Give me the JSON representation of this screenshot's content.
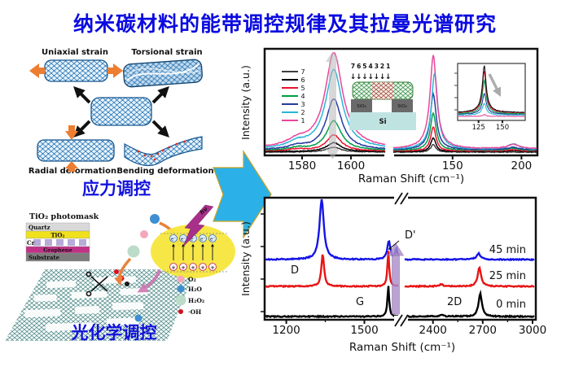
{
  "title": "纳米碳材料的能带调控规律及其拉曼光谱研究",
  "strain": {
    "uniaxial": "Uniaxial strain",
    "torsional": "Torsional strain",
    "radial": "Radial deformation",
    "bending": "Bending deformation",
    "caption": "应力调控",
    "arrow_color": "#ed7d31"
  },
  "photochem": {
    "mask_title": "TiO₂ photomask",
    "layers": [
      {
        "name": "Quartz",
        "color": "#d9d9d9"
      },
      {
        "name": "TiO₂",
        "color": "#f0e11c"
      },
      {
        "name": "Cr",
        "color": "#b7abd8"
      },
      {
        "name": "Graphene",
        "color": "#c03287"
      },
      {
        "name": "Substrate",
        "color": "#7d7d7d"
      }
    ],
    "legend": [
      {
        "label": "O₂",
        "color": "#f4a7bb"
      },
      {
        "label": "H₂O",
        "color": "#3e8ed0"
      },
      {
        "label": "H₂O₂",
        "color": "#bcdcca"
      },
      {
        "label": "·OH",
        "color": "#d01020"
      }
    ],
    "excitation": "hν",
    "electron": "e⁻",
    "hole": "+",
    "caption": "光化学调控"
  },
  "flow_arrow_color": "#2bb1e8",
  "chart_data": [
    {
      "type": "line",
      "xlabel": "Raman Shift (cm⁻¹)",
      "ylabel": "Intensity (a.u.)",
      "panels": [
        {
          "x_range": [
            1565,
            1614
          ],
          "ticks": [
            1580,
            1600
          ]
        },
        {
          "x_range": [
            107,
            211
          ],
          "ticks": [
            150,
            200
          ]
        }
      ],
      "series": [
        {
          "name": "7",
          "color": "#3f3f3f",
          "baseline": 0.0,
          "peaks": [
            [
              1593,
              3.5,
              0.055
            ],
            [
              136,
              2.2,
              0.085
            ]
          ]
        },
        {
          "name": "6",
          "color": "#000000",
          "baseline": 0.006,
          "peaks": [
            [
              1593,
              3.5,
              0.1
            ],
            [
              136,
              2.2,
              0.155
            ],
            [
              194,
              5,
              0.01
            ]
          ]
        },
        {
          "name": "5",
          "color": "#e8112d",
          "baseline": 0.012,
          "peaks": [
            [
              1593,
              3.6,
              0.18
            ],
            [
              1578,
              4,
              0.02
            ],
            [
              136,
              2.3,
              0.27
            ],
            [
              194,
              5,
              0.015
            ]
          ]
        },
        {
          "name": "4",
          "color": "#009e49",
          "baseline": 0.018,
          "peaks": [
            [
              1593,
              3.7,
              0.33
            ],
            [
              1578,
              4,
              0.03
            ],
            [
              136,
              2.4,
              0.4
            ],
            [
              136,
              7,
              0.02
            ],
            [
              194,
              5,
              0.025
            ]
          ]
        },
        {
          "name": "3",
          "color": "#283a9e",
          "baseline": 0.024,
          "peaks": [
            [
              1593,
              3.8,
              0.57
            ],
            [
              1578,
              4,
              0.04
            ],
            [
              136,
              2.5,
              0.58
            ],
            [
              136,
              7,
              0.05
            ],
            [
              194,
              5,
              0.03
            ]
          ]
        },
        {
          "name": "2",
          "color": "#2cb5d6",
          "baseline": 0.03,
          "peaks": [
            [
              1593,
              4.0,
              0.84
            ],
            [
              1593,
              9,
              0.05
            ],
            [
              1578,
              4.5,
              0.06
            ],
            [
              137,
              2.6,
              0.8
            ],
            [
              136,
              7,
              0.06
            ],
            [
              194,
              5,
              0.06
            ]
          ]
        },
        {
          "name": "1",
          "color": "#e8479b",
          "baseline": 0.036,
          "peaks": [
            [
              1593,
              4.2,
              1.0
            ],
            [
              1593,
              9,
              0.07
            ],
            [
              1578,
              5,
              0.07
            ],
            [
              136,
              2.7,
              0.95
            ],
            [
              136,
              7,
              0.1
            ],
            [
              194,
              5,
              0.05
            ]
          ]
        }
      ],
      "inset": {
        "x_range": [
          104,
          173
        ],
        "ticks": [
          125,
          150
        ],
        "series": [
          {
            "name": "1",
            "color": "#e8479b",
            "baseline": 0.0,
            "peaks": [
              [
                131,
                2.2,
                0.04
              ]
            ]
          },
          {
            "name": "2",
            "color": "#2cb5d6",
            "baseline": 0.03,
            "peaks": [
              [
                131,
                2.2,
                0.25
              ],
              [
                131,
                7,
                0.03
              ]
            ]
          },
          {
            "name": "3",
            "color": "#283a9e",
            "baseline": 0.05,
            "peaks": [
              [
                131,
                2.2,
                0.45
              ],
              [
                131,
                7,
                0.05
              ]
            ]
          },
          {
            "name": "4",
            "color": "#009e49",
            "baseline": 0.06,
            "peaks": [
              [
                131,
                2.2,
                0.72
              ],
              [
                131,
                7,
                0.08
              ]
            ]
          },
          {
            "name": "5",
            "color": "#e8112d",
            "baseline": 0.08,
            "peaks": [
              [
                131,
                2.2,
                0.9
              ],
              [
                131,
                7,
                0.1
              ]
            ]
          },
          {
            "name": "6",
            "color": "#111111",
            "baseline": 0.09,
            "peaks": [
              [
                131,
                2.2,
                1.0
              ],
              [
                131,
                7,
                0.12
              ]
            ]
          }
        ]
      },
      "device": {
        "numbers": [
          {
            "label": "7",
            "color": "#1b2a9b"
          },
          {
            "label": "6",
            "color": "#000000"
          },
          {
            "label": "5",
            "color": "#e8112d"
          },
          {
            "label": "4",
            "color": "#009e49"
          },
          {
            "label": "3",
            "color": "#2540c8"
          },
          {
            "label": "2",
            "color": "#29b5d6"
          },
          {
            "label": "1",
            "color": "#e8479b"
          }
        ],
        "sio2": "SiO₂",
        "si": "Si"
      }
    },
    {
      "type": "line",
      "xlabel": "Raman Shift (cm⁻¹)",
      "ylabel": "Intensity (a.u.)",
      "panels": [
        {
          "x_range": [
            1120,
            1630
          ],
          "ticks": [
            1200,
            1500
          ],
          "minor_ticks": [
            1350
          ]
        },
        {
          "x_range": [
            2230,
            3010
          ],
          "ticks": [
            2400,
            2700,
            3000
          ],
          "minor_ticks": [
            2550,
            2850
          ]
        }
      ],
      "series": [
        {
          "name": "0 min",
          "color": "#000000",
          "baseline": 0.0,
          "peaks": [
            [
              1592,
              4,
              0.25
            ],
            [
              2450,
              15,
              0.012
            ],
            [
              2685,
              12,
              0.19
            ]
          ]
        },
        {
          "name": "25 min",
          "color": "#e81414",
          "baseline": 0.247,
          "peaks": [
            [
              1340,
              6,
              0.27
            ],
            [
              1592,
              4,
              0.29
            ],
            [
              2450,
              15,
              0.015
            ],
            [
              2680,
              12,
              0.155
            ]
          ]
        },
        {
          "name": "45 min",
          "color": "#1414e8",
          "baseline": 0.467,
          "peaks": [
            [
              1336,
              10,
              0.49
            ],
            [
              1594,
              7,
              0.15
            ],
            [
              1623,
              5,
              0.085
            ],
            [
              2675,
              14,
              0.05
            ]
          ]
        }
      ],
      "peak_labels": [
        "D",
        "G",
        "D'",
        "2D"
      ],
      "time_labels": [
        "45 min",
        "25 min",
        "0 min"
      ]
    }
  ]
}
